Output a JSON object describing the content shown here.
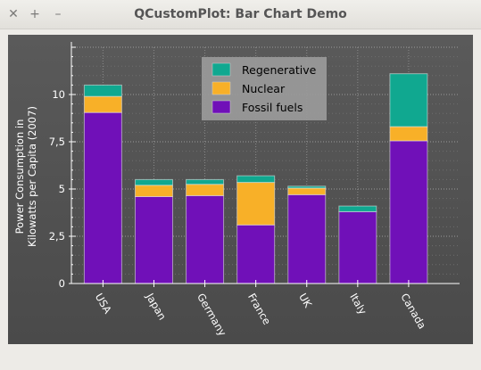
{
  "window": {
    "title": "QCustomPlot: Bar Chart Demo",
    "close_glyph": "✕",
    "maximize_glyph": "+",
    "minimize_glyph": "–"
  },
  "colors": {
    "background_top": "#5a5a5a",
    "background_bottom": "#4a4a4a",
    "axis": "#ffffff",
    "grid": "#8a8a8a",
    "legend_bg": "#9a9a9a"
  },
  "chart_data": {
    "type": "bar",
    "stacked": true,
    "title": "",
    "xlabel": "",
    "ylabel_lines": [
      "Power Consumption in",
      "Kilowatts per Capita (2007)"
    ],
    "ylim": [
      0,
      12.5
    ],
    "yticks": [
      0,
      2.5,
      5,
      7.5,
      10
    ],
    "ytick_labels": [
      "0",
      "2,5",
      "5",
      "7,5",
      "10"
    ],
    "grid": true,
    "legend_position": "top-center",
    "categories": [
      "USA",
      "Japan",
      "Germany",
      "France",
      "UK",
      "Italy",
      "Canada"
    ],
    "series": [
      {
        "name": "Fossil fuels",
        "color": "#7010b8",
        "values": [
          9.05,
          4.6,
          4.65,
          3.1,
          4.7,
          3.8,
          7.55
        ]
      },
      {
        "name": "Nuclear",
        "color": "#f8b028",
        "values": [
          0.85,
          0.6,
          0.6,
          2.25,
          0.35,
          0.0,
          0.75
        ]
      },
      {
        "name": "Regenerative",
        "color": "#10a890",
        "values": [
          0.6,
          0.3,
          0.25,
          0.35,
          0.1,
          0.3,
          2.8
        ]
      }
    ],
    "legend_order": [
      "Regenerative",
      "Nuclear",
      "Fossil fuels"
    ]
  }
}
